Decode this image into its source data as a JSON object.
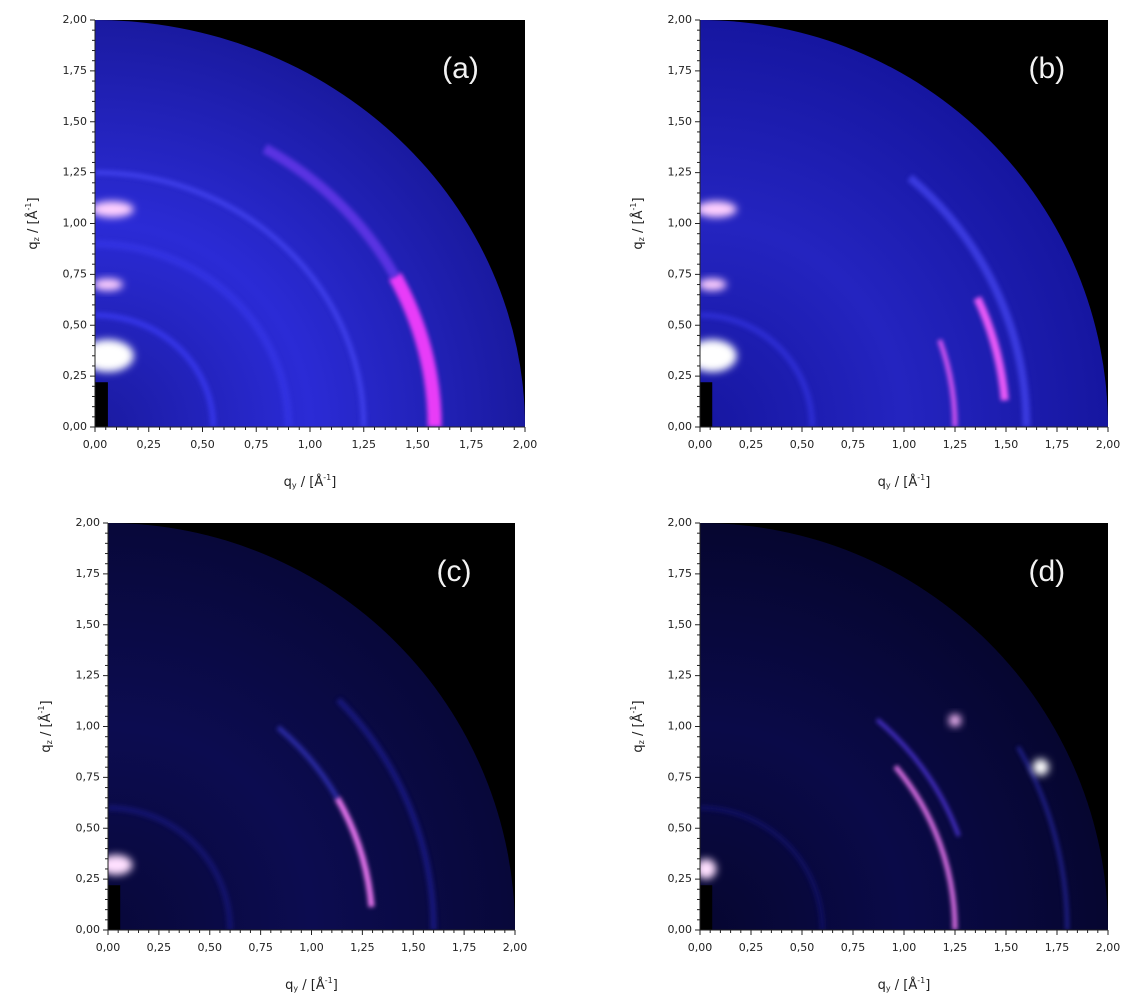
{
  "chart_data": [
    {
      "type": "heatmap",
      "label": "(a)",
      "xlim": [
        0,
        2
      ],
      "ylim": [
        0,
        2
      ],
      "xticks": [
        {
          "value": 0,
          "label": "0,00"
        },
        {
          "value": 0.25,
          "label": "0,25"
        },
        {
          "value": 0.5,
          "label": "0,50"
        },
        {
          "value": 0.75,
          "label": "0,75"
        },
        {
          "value": 1,
          "label": "1,00"
        },
        {
          "value": 1.25,
          "label": "1,25"
        },
        {
          "value": 1.5,
          "label": "1,50"
        },
        {
          "value": 1.75,
          "label": "1,75"
        },
        {
          "value": 2,
          "label": "2,00"
        }
      ],
      "yticks": [
        {
          "value": 0,
          "label": "0,00"
        },
        {
          "value": 0.25,
          "label": "0,25"
        },
        {
          "value": 0.5,
          "label": "0,50"
        },
        {
          "value": 0.75,
          "label": "0,75"
        },
        {
          "value": 1,
          "label": "1,00"
        },
        {
          "value": 1.25,
          "label": "1,25"
        },
        {
          "value": 1.5,
          "label": "1,50"
        },
        {
          "value": 1.75,
          "label": "1,75"
        },
        {
          "value": 2,
          "label": "2,00"
        }
      ],
      "x_label": [
        "q",
        "y",
        " / [Å",
        "-1",
        "]"
      ],
      "y_label": [
        "q",
        "z",
        " / [Å",
        "-1",
        "]"
      ]
    },
    {
      "type": "heatmap",
      "label": "(b)",
      "xlim": [
        0,
        2
      ],
      "ylim": [
        0,
        2
      ],
      "xticks": [
        {
          "value": 0,
          "label": "0,00"
        },
        {
          "value": 0.25,
          "label": "0,25"
        },
        {
          "value": 0.5,
          "label": "0,50"
        },
        {
          "value": 0.75,
          "label": "0,75"
        },
        {
          "value": 1,
          "label": "1,00"
        },
        {
          "value": 1.25,
          "label": "1,25"
        },
        {
          "value": 1.5,
          "label": "1,50"
        },
        {
          "value": 1.75,
          "label": "1,75"
        },
        {
          "value": 2,
          "label": "2,00"
        }
      ],
      "yticks": [
        {
          "value": 0,
          "label": "0,00"
        },
        {
          "value": 0.25,
          "label": "0,25"
        },
        {
          "value": 0.5,
          "label": "0,50"
        },
        {
          "value": 0.75,
          "label": "0,75"
        },
        {
          "value": 1,
          "label": "1,00"
        },
        {
          "value": 1.25,
          "label": "1,25"
        },
        {
          "value": 1.5,
          "label": "1,50"
        },
        {
          "value": 1.75,
          "label": "1,75"
        },
        {
          "value": 2,
          "label": "2,00"
        }
      ],
      "x_label": [
        "q",
        "y",
        " / [Å",
        "-1",
        "]"
      ],
      "y_label": [
        "q",
        "z",
        " / [Å",
        "-1",
        "]"
      ]
    },
    {
      "type": "heatmap",
      "label": "(c)",
      "xlim": [
        0,
        2
      ],
      "ylim": [
        0,
        2
      ],
      "xticks": [
        {
          "value": 0,
          "label": "0,00"
        },
        {
          "value": 0.25,
          "label": "0,25"
        },
        {
          "value": 0.5,
          "label": "0,50"
        },
        {
          "value": 0.75,
          "label": "0,75"
        },
        {
          "value": 1,
          "label": "1,00"
        },
        {
          "value": 1.25,
          "label": "1,25"
        },
        {
          "value": 1.5,
          "label": "1,50"
        },
        {
          "value": 1.75,
          "label": "1,75"
        },
        {
          "value": 2,
          "label": "2,00"
        }
      ],
      "yticks": [
        {
          "value": 0,
          "label": "0,00"
        },
        {
          "value": 0.25,
          "label": "0,25"
        },
        {
          "value": 0.5,
          "label": "0,50"
        },
        {
          "value": 0.75,
          "label": "0,75"
        },
        {
          "value": 1,
          "label": "1,00"
        },
        {
          "value": 1.25,
          "label": "1,25"
        },
        {
          "value": 1.5,
          "label": "1,50"
        },
        {
          "value": 1.75,
          "label": "1,75"
        },
        {
          "value": 2,
          "label": "2,00"
        }
      ],
      "x_label": [
        "q",
        "y",
        " / [Å",
        "-1",
        "]"
      ],
      "y_label": [
        "q",
        "z",
        " / [Å",
        "-1",
        "]"
      ]
    },
    {
      "type": "heatmap",
      "label": "(d)",
      "xlim": [
        0,
        2
      ],
      "ylim": [
        0,
        2
      ],
      "xticks": [
        {
          "value": 0,
          "label": "0,00"
        },
        {
          "value": 0.25,
          "label": "0,25"
        },
        {
          "value": 0.5,
          "label": "0,50"
        },
        {
          "value": 0.75,
          "label": "0,75"
        },
        {
          "value": 1,
          "label": "1,00"
        },
        {
          "value": 1.25,
          "label": "1,25"
        },
        {
          "value": 1.5,
          "label": "1,50"
        },
        {
          "value": 1.75,
          "label": "1,75"
        },
        {
          "value": 2,
          "label": "2,00"
        }
      ],
      "yticks": [
        {
          "value": 0,
          "label": "0,00"
        },
        {
          "value": 0.25,
          "label": "0,25"
        },
        {
          "value": 0.5,
          "label": "0,50"
        },
        {
          "value": 0.75,
          "label": "0,75"
        },
        {
          "value": 1,
          "label": "1,00"
        },
        {
          "value": 1.25,
          "label": "1,25"
        },
        {
          "value": 1.5,
          "label": "1,50"
        },
        {
          "value": 1.75,
          "label": "1,75"
        },
        {
          "value": 2,
          "label": "2,00"
        }
      ],
      "x_label": [
        "q",
        "y",
        " / [Å",
        "-1",
        "]"
      ],
      "y_label": [
        "q",
        "z",
        " / [Å",
        "-1",
        "]"
      ]
    }
  ]
}
